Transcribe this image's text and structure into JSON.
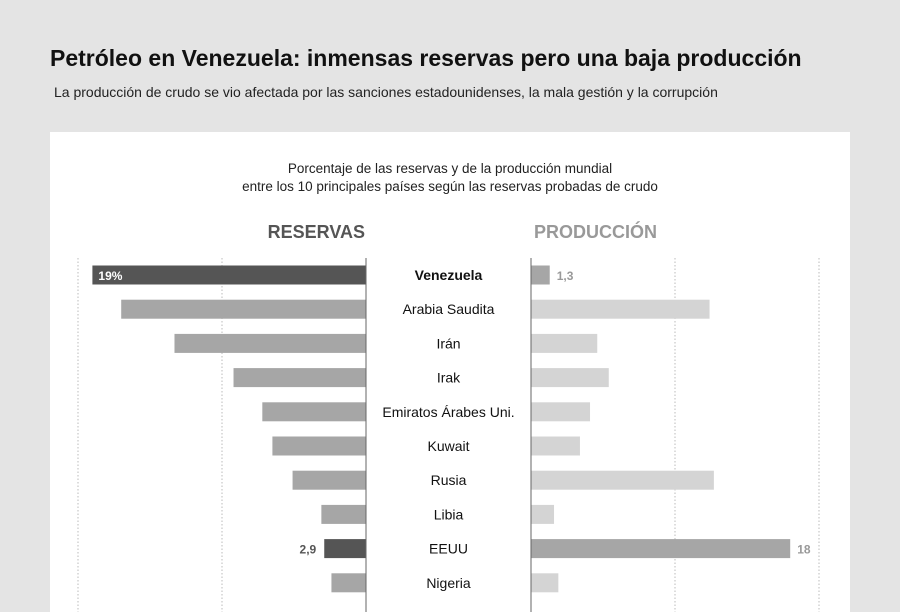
{
  "title": "Petróleo en Venezuela: inmensas reservas pero una baja producción",
  "subtitle": "La producción de crudo se vio afectada por las sanciones estadounidenses, la mala gestión y la corrupción",
  "chart_data": {
    "type": "bar",
    "title_line1": "Porcentaje de las reservas y de la producción mundial",
    "title_line2": "entre los 10 principales países según las reservas probadas de crudo",
    "categories": [
      "Venezuela",
      "Arabia Saudita",
      "Irán",
      "Irak",
      "Emiratos Árabes Uni.",
      "Kuwait",
      "Rusia",
      "Libia",
      "EEUU",
      "Nigeria"
    ],
    "highlight_category": "Venezuela",
    "series": [
      {
        "name": "RESERVAS",
        "values": [
          19,
          17.0,
          13.3,
          9.2,
          7.2,
          6.5,
          5.1,
          3.1,
          2.9,
          2.4
        ],
        "color": "#a6a6a6",
        "highlight_color": "#555555",
        "labels": {
          "0": "19%",
          "8": "2,9"
        }
      },
      {
        "name": "PRODUCCIÓN",
        "values": [
          1.3,
          12.4,
          4.6,
          5.4,
          4.1,
          3.4,
          12.7,
          1.6,
          18,
          1.9
        ],
        "color": "#d4d4d4",
        "highlight_color": "#a6a6a6",
        "labels": {
          "0": "1,3",
          "8": "18"
        }
      }
    ],
    "xlim": [
      0,
      20
    ],
    "grid": true,
    "unit": "%"
  }
}
